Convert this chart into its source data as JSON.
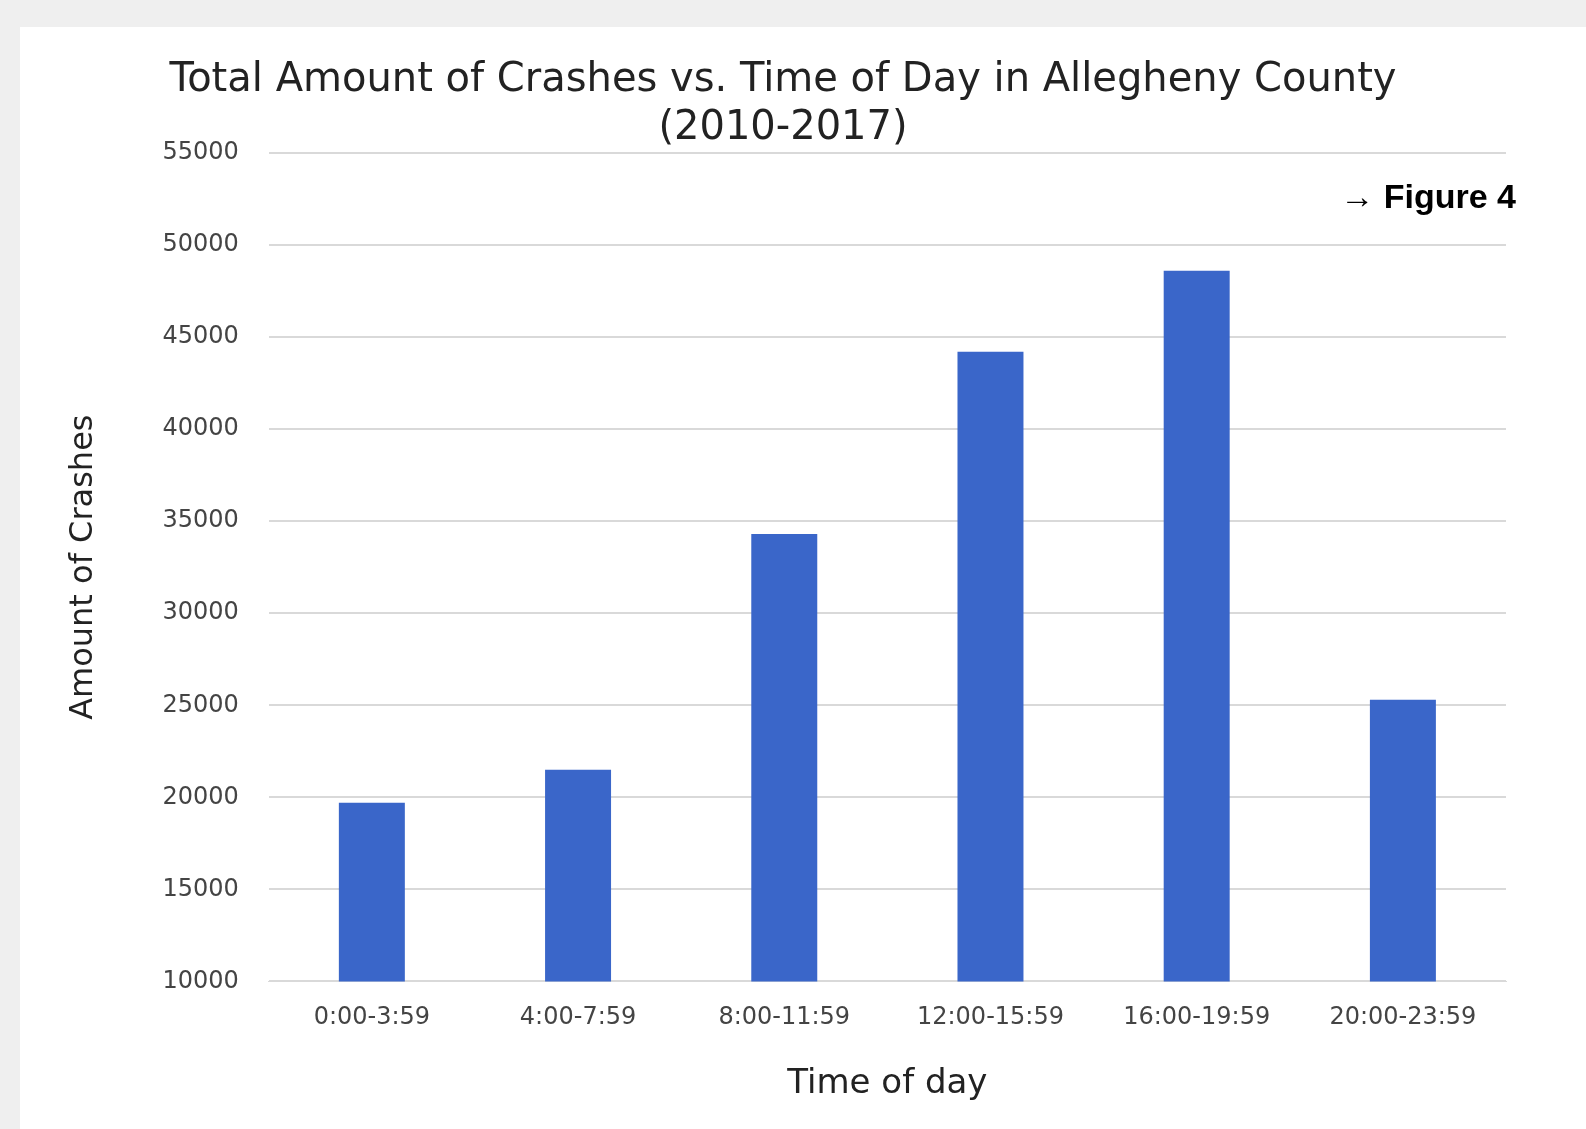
{
  "chart_data": {
    "type": "bar",
    "title": [
      "Total Amount of Crashes vs. Time of Day in Allegheny County",
      "(2010-2017)"
    ],
    "xlabel": "Time of day",
    "ylabel": "Amount of Crashes",
    "categories": [
      "0:00-3:59",
      "4:00-7:59",
      "8:00-11:59",
      "12:00-15:59",
      "16:00-19:59",
      "20:00-23:59"
    ],
    "values": [
      19700,
      21500,
      34300,
      44200,
      48600,
      25300
    ],
    "color": "#3a66c9",
    "ylim": [
      10000,
      55000
    ],
    "yticks": [
      10000,
      15000,
      20000,
      25000,
      30000,
      35000,
      40000,
      45000,
      50000,
      55000
    ],
    "grid": "y",
    "legend": false,
    "annotations": [
      "→ Figure 4"
    ]
  }
}
